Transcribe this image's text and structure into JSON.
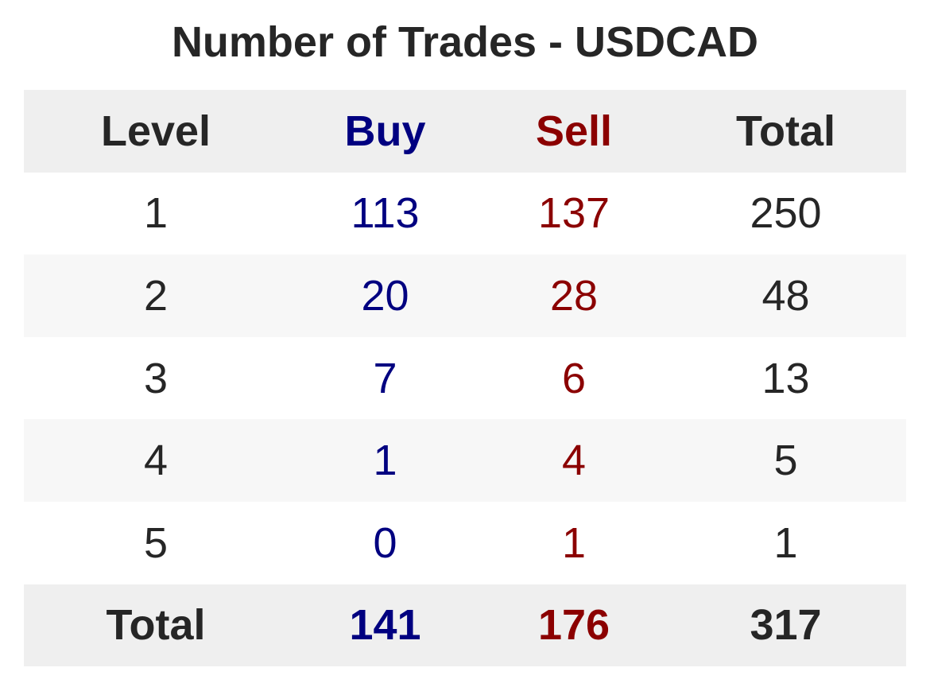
{
  "chart_data": {
    "type": "table",
    "title": "Number of Trades - USDCAD",
    "columns": [
      "Level",
      "Buy",
      "Sell",
      "Total"
    ],
    "rows": [
      [
        "1",
        "113",
        "137",
        "250"
      ],
      [
        "2",
        "20",
        "28",
        "48"
      ],
      [
        "3",
        "7",
        "6",
        "13"
      ],
      [
        "4",
        "1",
        "4",
        "5"
      ],
      [
        "5",
        "0",
        "1",
        "1"
      ]
    ],
    "totals": [
      "Total",
      "141",
      "176",
      "317"
    ]
  },
  "colors": {
    "text": "#262626",
    "buy": "#000080",
    "sell": "#8b0000",
    "header_bg": "#efefef",
    "stripe_bg": "#f7f7f7",
    "row_bg": "#ffffff"
  }
}
